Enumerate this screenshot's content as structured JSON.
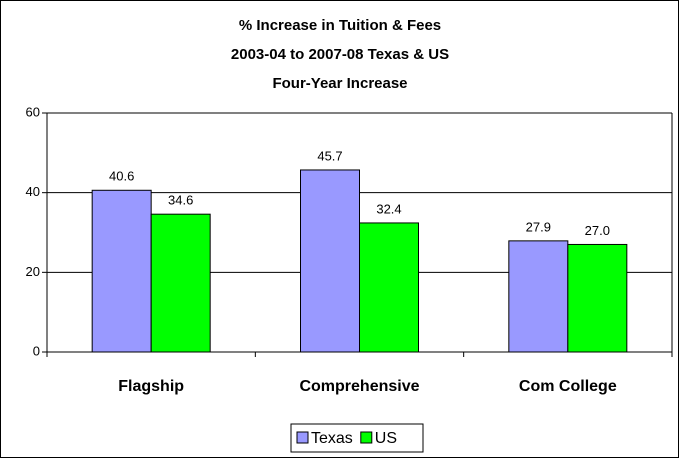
{
  "chart_data": {
    "type": "bar",
    "title": [
      "% Increase in Tuition & Fees",
      "2003-04 to 2007-08 Texas & US",
      "Four-Year Increase"
    ],
    "categories": [
      "Flagship",
      "Comprehensive",
      "Com College"
    ],
    "series": [
      {
        "name": "Texas",
        "color": "#9999ff",
        "values": [
          40.6,
          45.7,
          27.9
        ],
        "value_labels": [
          "40.6",
          "45.7",
          "27.9"
        ]
      },
      {
        "name": "US",
        "color": "#00ff00",
        "values": [
          34.6,
          32.4,
          27.0
        ],
        "value_labels": [
          "34.6",
          "32.4",
          "27.0"
        ]
      }
    ],
    "ylim": [
      0,
      60
    ],
    "yticks": [
      0,
      20,
      40,
      60
    ],
    "grid": true,
    "legend": "bottom"
  }
}
